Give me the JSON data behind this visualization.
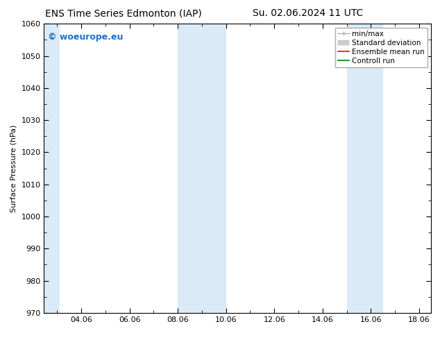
{
  "title_left": "ENS Time Series Edmonton (IAP)",
  "title_right": "Su. 02.06.2024 11 UTC",
  "ylabel": "Surface Pressure (hPa)",
  "ylim": [
    970,
    1060
  ],
  "yticks": [
    970,
    980,
    990,
    1000,
    1010,
    1020,
    1030,
    1040,
    1050,
    1060
  ],
  "xtick_labels": [
    "04.06",
    "06.06",
    "08.06",
    "10.06",
    "12.06",
    "14.06",
    "16.06",
    "18.06"
  ],
  "xtick_days": [
    4,
    6,
    8,
    10,
    12,
    14,
    16,
    18
  ],
  "start_day": 2,
  "start_hour": 11,
  "end_day": 18,
  "end_hour": 12,
  "watermark": "© woeurope.eu",
  "watermark_color": "#1e6fcc",
  "background_color": "#ffffff",
  "plot_bg_color": "#ffffff",
  "shaded_bands_color": "#daeaf7",
  "shaded_bands_day_ranges": [
    [
      2.0,
      3.1
    ],
    [
      8.0,
      10.0
    ],
    [
      15.0,
      16.5
    ]
  ],
  "legend_items": [
    {
      "label": "min/max",
      "color": "#aaaaaa",
      "lw": 1.0
    },
    {
      "label": "Standard deviation",
      "color": "#cccccc",
      "lw": 5
    },
    {
      "label": "Ensemble mean run",
      "color": "#ff0000",
      "lw": 1.2
    },
    {
      "label": "Controll run",
      "color": "#007700",
      "lw": 1.2
    }
  ],
  "title_fontsize": 10,
  "axis_label_fontsize": 8,
  "tick_fontsize": 8,
  "watermark_fontsize": 9,
  "legend_fontsize": 7.5,
  "spine_color": "#000000",
  "tick_color": "#000000"
}
